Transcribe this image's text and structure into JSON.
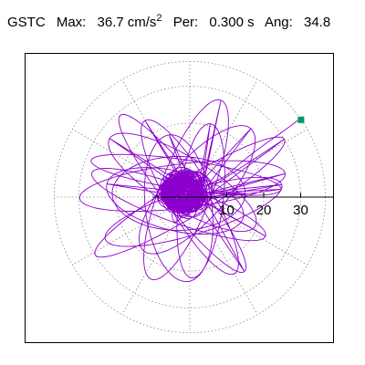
{
  "header": {
    "station": "GSTC",
    "max_label": "Max:",
    "max_value": "36.7",
    "max_unit": "cm/s",
    "max_exp": "2",
    "per_label": "Per:",
    "per_value": "0.300 s",
    "ang_label": "Ang:",
    "ang_value": "34.8"
  },
  "chart_data": {
    "type": "line",
    "title": "",
    "xlabel": "",
    "ylabel": "",
    "x_range": [
      -38,
      38
    ],
    "y_range": [
      -38,
      38
    ],
    "radial_circles": [
      10,
      20,
      30,
      36.7
    ],
    "radial_spokes_deg": [
      0,
      30,
      60,
      90,
      120,
      150,
      180,
      210,
      240,
      270,
      300,
      330
    ],
    "tick_labels": [
      "10",
      "20",
      "30"
    ],
    "tick_values": [
      10,
      20,
      30
    ],
    "max_point": {
      "x": 30.1,
      "y": 20.9
    },
    "trace_color": "#8B00CC",
    "marker_color": "#009966",
    "grid_color": "#888888"
  }
}
